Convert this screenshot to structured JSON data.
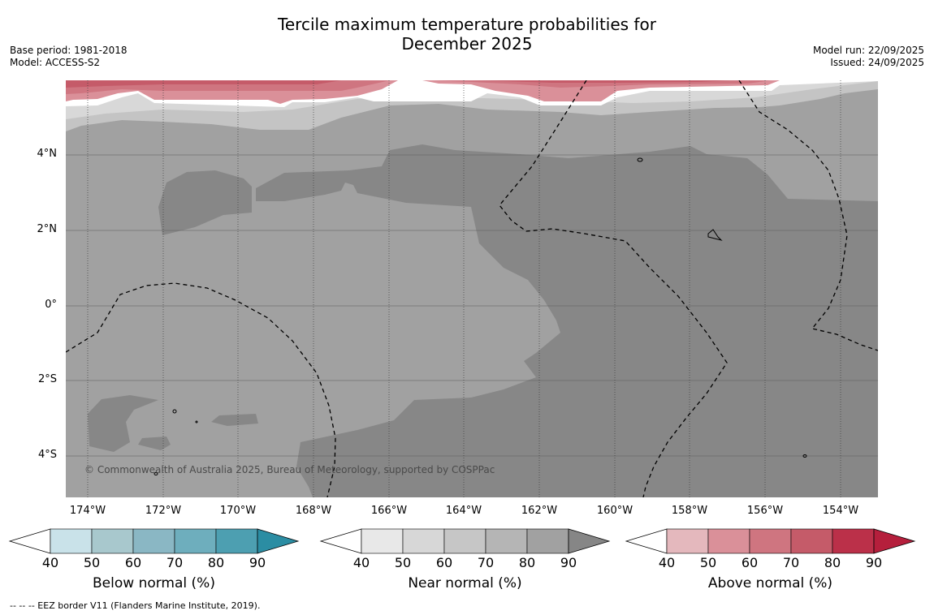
{
  "title": {
    "line1": "Tercile maximum temperature probabilities for",
    "line2": "December 2025"
  },
  "meta_left": {
    "base_period": "Base period: 1981-2018",
    "model": "Model: ACCESS-S2"
  },
  "meta_right": {
    "model_run": "Model run: 22/09/2025",
    "issued": "Issued: 24/09/2025"
  },
  "y_ticks": [
    "4°N",
    "2°N",
    "0°",
    "2°S",
    "4°S"
  ],
  "x_ticks": [
    "174°W",
    "172°W",
    "170°W",
    "168°W",
    "166°W",
    "164°W",
    "162°W",
    "160°W",
    "158°W",
    "156°W",
    "154°W"
  ],
  "copyright": "© Commonwealth of Australia 2025, Bureau of Meteorology, supported by COSPPac",
  "colorbars": [
    {
      "label": "Below normal (%)",
      "ticks": [
        "40",
        "50",
        "60",
        "70",
        "80",
        "90"
      ],
      "colors": [
        "#ffffff",
        "#c9e2e9",
        "#a8c8cd",
        "#8ab7c4",
        "#6eaebd",
        "#4d9fb1",
        "#2b8da3"
      ]
    },
    {
      "label": "Near normal (%)",
      "ticks": [
        "40",
        "50",
        "60",
        "70",
        "80",
        "90"
      ],
      "colors": [
        "#ffffff",
        "#e8e8e8",
        "#d7d7d7",
        "#c6c6c6",
        "#b5b5b5",
        "#a1a1a1",
        "#868686"
      ]
    },
    {
      "label": "Above normal (%)",
      "ticks": [
        "40",
        "50",
        "60",
        "70",
        "80",
        "90"
      ],
      "colors": [
        "#ffffff",
        "#e4b8bd",
        "#da9099",
        "#cf7580",
        "#c55b69",
        "#bb3049",
        "#b51f3c"
      ]
    }
  ],
  "footer": "--  --  -- EEZ border V11 (Flanders Marine Institute, 2019)."
}
